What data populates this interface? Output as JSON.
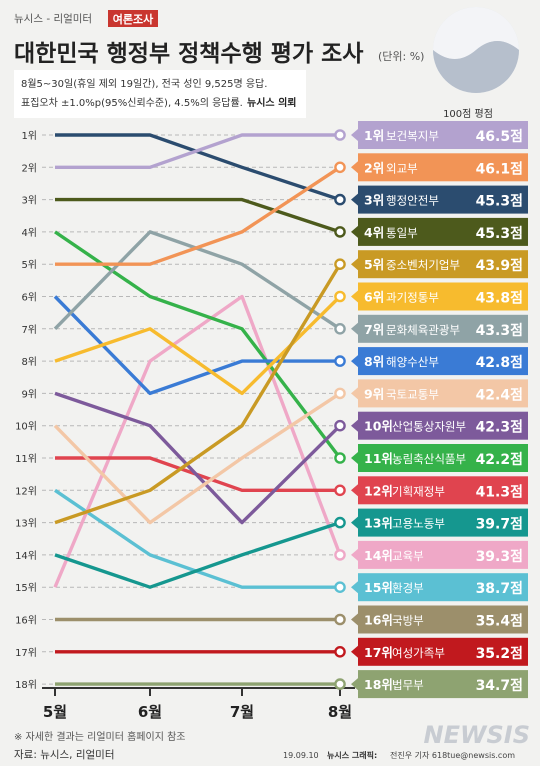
{
  "header": {
    "source_brand": "뉴시스 - 리얼미터",
    "badge": "여론조사",
    "title": "대한민국 행정부 정책수행 평가 조사",
    "unit": "(단위: %)",
    "note_line1": "8월5~30일(휴일 제외 19일간), 전국 성인 9,525명 응답.",
    "note_line2_prefix": "표집오차 ±1.0%p(95%신뢰수준), 4.5%의 응답률.",
    "note_line2_suffix": "뉴시스 의뢰"
  },
  "score_header": "100점 평점",
  "footer": {
    "footnote": "※ 자세한 결과는 리얼미터 홈페이지 참조",
    "source": "자료: 뉴시스, 리얼미터",
    "credit_date": "19.09.10",
    "credit_brand": "뉴시스 그래픽:",
    "credit_author": "전진우 기자 618tue@newsis.com",
    "watermark": "NEWSIS"
  },
  "colors": {
    "background": "#f2f2f0",
    "title": "#222222",
    "badge_bg": "#c9362f",
    "dashed": "#b8b8b8"
  },
  "chart_data": {
    "type": "line",
    "chart_kind": "bump",
    "categories": [
      "5월",
      "6월",
      "7월",
      "8월"
    ],
    "rank_labels": [
      "1위",
      "2위",
      "3위",
      "4위",
      "5위",
      "6위",
      "7위",
      "8위",
      "9위",
      "10위",
      "11위",
      "12위",
      "13위",
      "14위",
      "15위",
      "16위",
      "17위",
      "18위"
    ],
    "y_axis": {
      "inverted": true,
      "range": [
        1,
        18
      ]
    },
    "series": [
      {
        "name": "보건복지부",
        "label": "1위",
        "score": "46.5점",
        "ranks": [
          2,
          2,
          1,
          1
        ],
        "color": "#b3a2cf"
      },
      {
        "name": "외교부",
        "label": "2위",
        "score": "46.1점",
        "ranks": [
          5,
          5,
          4,
          2
        ],
        "color": "#f29456"
      },
      {
        "name": "행정안전부",
        "label": "3위",
        "score": "45.3점",
        "ranks": [
          1,
          1,
          2,
          3
        ],
        "color": "#2b4c6f"
      },
      {
        "name": "통일부",
        "label": "4위",
        "score": "45.3점",
        "ranks": [
          3,
          3,
          3,
          4
        ],
        "color": "#4d5a1c"
      },
      {
        "name": "중소벤처기업부",
        "label": "5위",
        "score": "43.9점",
        "ranks": [
          13,
          12,
          10,
          5
        ],
        "color": "#c99a24"
      },
      {
        "name": "과기정통부",
        "label": "6위",
        "score": "43.8점",
        "ranks": [
          8,
          7,
          9,
          6
        ],
        "color": "#f7bb2e"
      },
      {
        "name": "문화체육관광부",
        "label": "7위",
        "score": "43.3점",
        "ranks": [
          7,
          4,
          5,
          7
        ],
        "color": "#8fa3a6"
      },
      {
        "name": "해양수산부",
        "label": "8위",
        "score": "42.8점",
        "ranks": [
          6,
          9,
          8,
          8
        ],
        "color": "#3a7bd5"
      },
      {
        "name": "국토교통부",
        "label": "9위",
        "score": "42.4점",
        "ranks": [
          10,
          13,
          11,
          9
        ],
        "color": "#f3c7a6"
      },
      {
        "name": "산업통상자원부",
        "label": "10위",
        "score": "42.3점",
        "ranks": [
          9,
          10,
          13,
          10
        ],
        "color": "#7d5a9b"
      },
      {
        "name": "농림축산식품부",
        "label": "11위",
        "score": "42.2점",
        "ranks": [
          4,
          6,
          7,
          11
        ],
        "color": "#35b24a"
      },
      {
        "name": "기획재정부",
        "label": "12위",
        "score": "41.3점",
        "ranks": [
          11,
          11,
          12,
          12
        ],
        "color": "#e0444f"
      },
      {
        "name": "고용노동부",
        "label": "13위",
        "score": "39.7점",
        "ranks": [
          14,
          15,
          14,
          13
        ],
        "color": "#15978f"
      },
      {
        "name": "교육부",
        "label": "14위",
        "score": "39.3점",
        "ranks": [
          15,
          8,
          6,
          14
        ],
        "color": "#efa8c7"
      },
      {
        "name": "환경부",
        "label": "15위",
        "score": "38.7점",
        "ranks": [
          12,
          14,
          15,
          15
        ],
        "color": "#5bc0d3"
      },
      {
        "name": "국방부",
        "label": "16위",
        "score": "35.4점",
        "ranks": [
          16,
          16,
          16,
          16
        ],
        "color": "#9c8f6b"
      },
      {
        "name": "여성가족부",
        "label": "17위",
        "score": "35.2점",
        "ranks": [
          17,
          17,
          17,
          17
        ],
        "color": "#c1191e"
      },
      {
        "name": "법무부",
        "label": "18위",
        "score": "34.7점",
        "ranks": [
          18,
          18,
          18,
          18
        ],
        "color": "#8ea371"
      }
    ]
  }
}
